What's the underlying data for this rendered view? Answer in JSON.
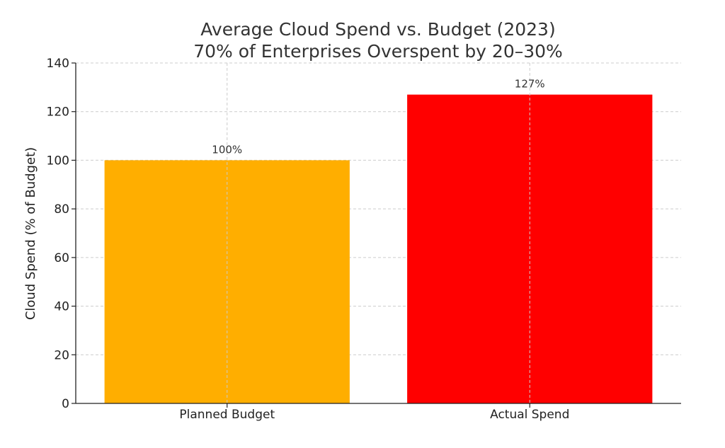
{
  "chart_data": {
    "type": "bar",
    "title": "Average Cloud Spend vs. Budget (2023)",
    "subtitle": "70% of Enterprises Overspent by 20–30%",
    "xlabel": "",
    "ylabel": "Cloud Spend (% of Budget)",
    "categories": [
      "Planned Budget",
      "Actual Spend"
    ],
    "values": [
      100,
      127
    ],
    "data_labels": [
      "100%",
      "127%"
    ],
    "colors": [
      "#FFAE00",
      "#FF0000"
    ],
    "ylim": [
      0,
      140
    ],
    "yticks": [
      0,
      20,
      40,
      60,
      80,
      100,
      120,
      140
    ],
    "grid": true,
    "legend": "none"
  }
}
